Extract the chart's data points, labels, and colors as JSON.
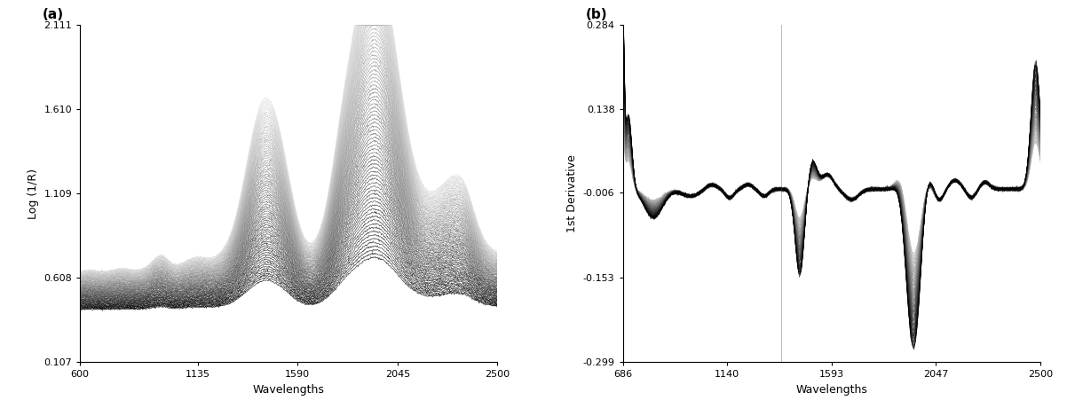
{
  "panel_a": {
    "label": "(a)",
    "xlabel": "Wavelengths",
    "ylabel": "Log (1/R)",
    "xlim": [
      600,
      2500
    ],
    "ylim": [
      0.107,
      2.111
    ],
    "yticks": [
      0.107,
      0.608,
      1.109,
      1.61,
      2.111
    ],
    "xticks": [
      600,
      1135,
      1590,
      2045,
      2500
    ]
  },
  "panel_b": {
    "label": "(b)",
    "xlabel": "Wavelengths",
    "ylabel": "1st Derivative",
    "xlim": [
      686,
      2500
    ],
    "ylim": [
      -0.299,
      0.284
    ],
    "yticks": [
      -0.299,
      -0.153,
      -0.006,
      0.138,
      0.284
    ],
    "xticks": [
      686,
      1140,
      1593,
      2047,
      2500
    ]
  },
  "n_spectra": 80,
  "background_color": "#ffffff",
  "line_width": 0.4
}
